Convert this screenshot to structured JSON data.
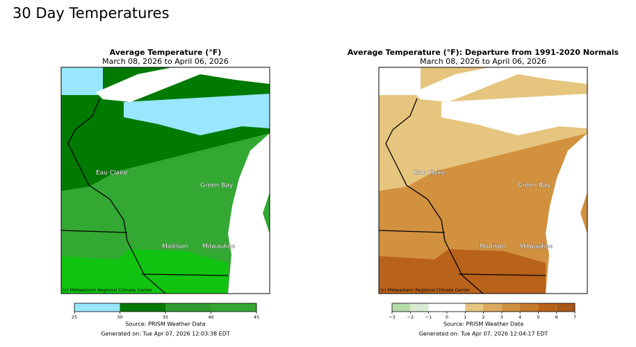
{
  "header": {
    "title": "30 Day Temperatures"
  },
  "panels": [
    {
      "title": "Average Temperature (°F)",
      "subtitle": "March 08, 2026 to April 06, 2026",
      "cities": [
        "Eau Claire",
        "Green Bay",
        "Madison",
        "Milwaukee"
      ],
      "credit": "(c) Midwestern Regional Climate Center",
      "colorbar": {
        "ticks": [
          25,
          30,
          35,
          40,
          45
        ],
        "colors": [
          "#99e6ff",
          "#007a00",
          "#2e9b2e",
          "#33a833",
          "#11c411"
        ]
      },
      "source": "Source: PRISM Weather Data",
      "generated": "Generated on: Tue Apr 07, 2026 12:03:38 EDT"
    },
    {
      "title": "Average Temperature (°F): Departure from 1991-2020 Normals",
      "subtitle": "March 08, 2026 to April 06, 2026",
      "cities": [
        "Eau Claire",
        "Green Bay",
        "Madison",
        "Milwaukee"
      ],
      "credit": "(c) Midwestern Regional Climate Center",
      "colorbar": {
        "ticks": [
          {
            "value": -3,
            "label": "−3"
          },
          {
            "value": -2,
            "label": "−2"
          },
          {
            "value": -1,
            "label": "−1"
          },
          0,
          1,
          2,
          3,
          4,
          5,
          6,
          7
        ],
        "colors": [
          "#b5dba7",
          "#d7ecd0",
          "#ffffff",
          "#ffffff",
          "#e6c57e",
          "#dcaa5e",
          "#d1913f",
          "#c67a2a",
          "#b8621a",
          "#a85818"
        ]
      },
      "source": "Source: PRISM Weather Data",
      "generated": "Generated on: Tue Apr 07, 2026 12:04:17 EDT"
    }
  ]
}
